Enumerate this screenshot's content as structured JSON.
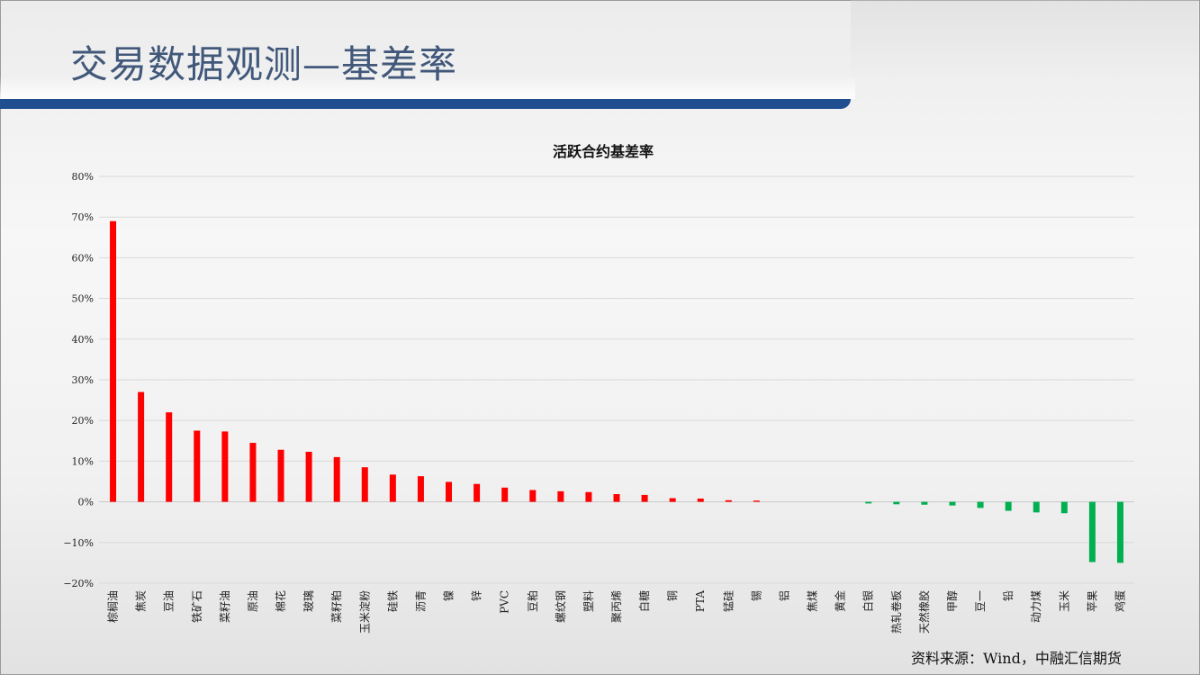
{
  "page": {
    "title": "交易数据观测—基差率",
    "source": "资料来源：Wind，中融汇信期货"
  },
  "colors": {
    "positive": "#ff0000",
    "negative": "#00b050",
    "title": "#41587a",
    "band": "#1f4f8f"
  },
  "chart_data": {
    "type": "bar",
    "title": "活跃合约基差率",
    "xlabel": "",
    "ylabel": "",
    "ylim": [
      -20,
      80
    ],
    "yticks": [
      80,
      70,
      60,
      50,
      40,
      30,
      20,
      10,
      0,
      -10,
      -20
    ],
    "ytick_labels": [
      "80%",
      "70%",
      "60%",
      "50%",
      "40%",
      "30%",
      "20%",
      "10%",
      "0%",
      "−10%",
      "−20%"
    ],
    "grid": true,
    "legend": "none",
    "categories": [
      "棕榈油",
      "焦炭",
      "豆油",
      "铁矿石",
      "菜籽油",
      "原油",
      "棉花",
      "玻璃",
      "菜籽粕",
      "玉米淀粉",
      "硅铁",
      "沥青",
      "镍",
      "锌",
      "PVC",
      "豆粕",
      "螺纹钢",
      "塑料",
      "聚丙烯",
      "白糖",
      "铜",
      "PTA",
      "锰硅",
      "锡",
      "铝",
      "焦煤",
      "黄金",
      "白银",
      "热轧卷板",
      "天然橡胶",
      "甲醇",
      "豆一",
      "铅",
      "动力煤",
      "玉米",
      "苹果",
      "鸡蛋"
    ],
    "values": [
      69.0,
      27.0,
      22.0,
      17.5,
      17.3,
      14.5,
      12.8,
      12.3,
      11.0,
      8.5,
      6.7,
      6.3,
      4.9,
      4.4,
      3.5,
      2.9,
      2.6,
      2.4,
      1.9,
      1.7,
      0.9,
      0.8,
      0.4,
      0.3,
      0.0,
      0.0,
      0.0,
      -0.4,
      -0.6,
      -0.7,
      -0.9,
      -1.5,
      -2.2,
      -2.6,
      -2.8,
      -14.8,
      -15.0
    ]
  }
}
